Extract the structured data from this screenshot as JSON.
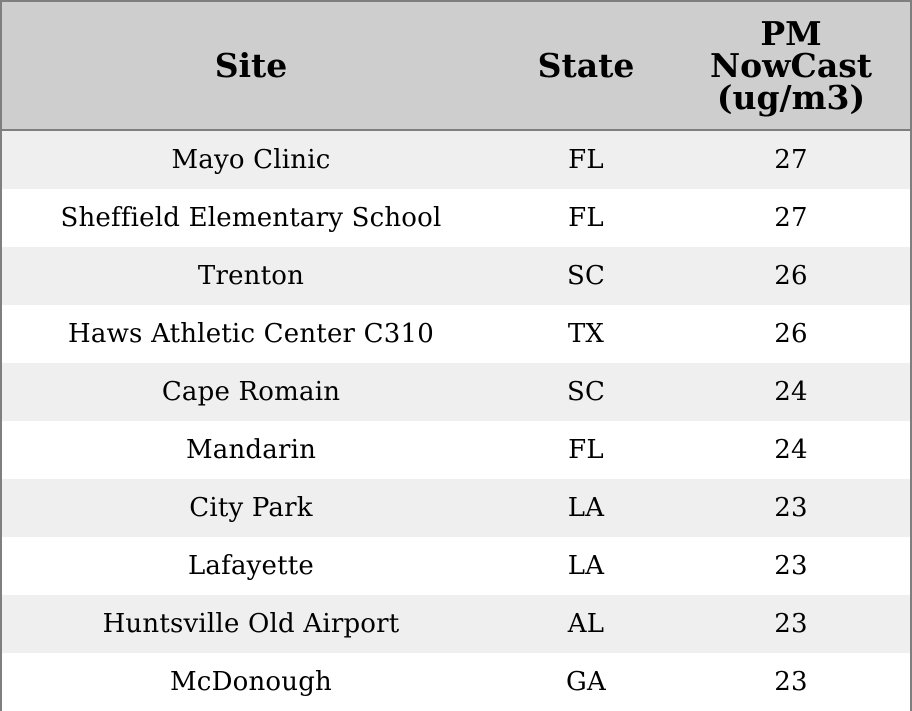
{
  "chart_data": {
    "type": "table",
    "columns": [
      "Site",
      "State",
      "PM\nNowCast\n(ug/m3)"
    ],
    "rows": [
      {
        "site": "Mayo Clinic",
        "state": "FL",
        "pm": 27
      },
      {
        "site": "Sheffield Elementary School",
        "state": "FL",
        "pm": 27
      },
      {
        "site": "Trenton",
        "state": "SC",
        "pm": 26
      },
      {
        "site": "Haws Athletic Center C310",
        "state": "TX",
        "pm": 26
      },
      {
        "site": "Cape Romain",
        "state": "SC",
        "pm": 24
      },
      {
        "site": "Mandarin",
        "state": "FL",
        "pm": 24
      },
      {
        "site": "City Park",
        "state": "LA",
        "pm": 23
      },
      {
        "site": "Lafayette",
        "state": "LA",
        "pm": 23
      },
      {
        "site": "Huntsville Old Airport",
        "state": "AL",
        "pm": 23
      },
      {
        "site": "McDonough",
        "state": "GA",
        "pm": 23
      }
    ]
  },
  "colors": {
    "header_bg": "#cecece",
    "row_alt_bg": "#efefef",
    "row_bg": "#ffffff",
    "border": "#7f7f7f"
  }
}
